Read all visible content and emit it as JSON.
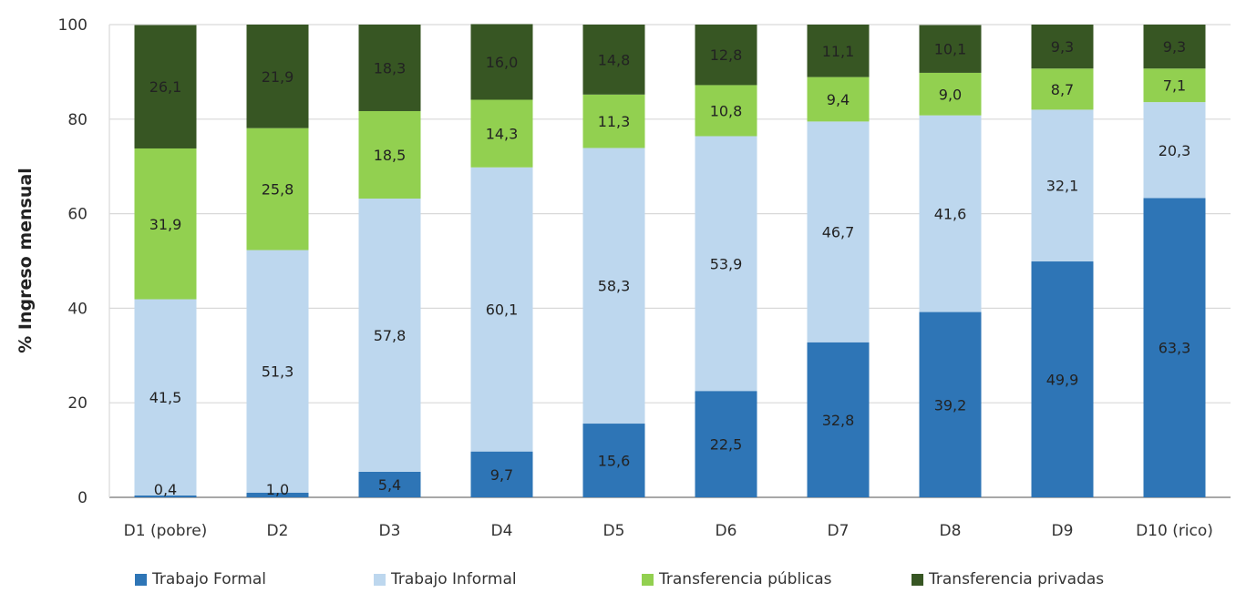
{
  "chart_data": {
    "type": "bar",
    "stacked": true,
    "title": "",
    "xlabel": "",
    "ylabel": "% Ingreso mensual",
    "ylim": [
      0,
      100
    ],
    "yticks": [
      0,
      20,
      40,
      60,
      80,
      100
    ],
    "grid": true,
    "legend_position": "bottom",
    "categories": [
      "D1 (pobre)",
      "D2",
      "D3",
      "D4",
      "D5",
      "D6",
      "D7",
      "D8",
      "D9",
      "D10 (rico)"
    ],
    "series": [
      {
        "name": "Trabajo Formal",
        "color": "#2e75b6",
        "label_color": "#1f3b5c",
        "values": [
          0.4,
          1.0,
          5.4,
          9.7,
          15.6,
          22.5,
          32.8,
          39.2,
          49.9,
          63.3
        ],
        "labels": [
          "0,4",
          "1,0",
          "5,4",
          "9,7",
          "15,6",
          "22,5",
          "32,8",
          "39,2",
          "49,9",
          "63,3"
        ]
      },
      {
        "name": "Trabajo Informal",
        "color": "#bdd7ee",
        "label_color": "#2b3440",
        "values": [
          41.5,
          51.3,
          57.8,
          60.1,
          58.3,
          53.9,
          46.7,
          41.6,
          32.1,
          20.3
        ],
        "labels": [
          "41,5",
          "51,3",
          "57,8",
          "60,1",
          "58,3",
          "53,9",
          "46,7",
          "41,6",
          "32,1",
          "20,3"
        ]
      },
      {
        "name": "Transferencia públicas",
        "color": "#92d050",
        "label_color": "#2b3a1a",
        "values": [
          31.9,
          25.8,
          18.5,
          14.3,
          11.3,
          10.8,
          9.4,
          9.0,
          8.7,
          7.1
        ],
        "labels": [
          "31,9",
          "25,8",
          "18,5",
          "14,3",
          "11,3",
          "10,8",
          "9,4",
          "9,0",
          "8,7",
          "7,1"
        ]
      },
      {
        "name": "Transferencia privadas",
        "color": "#375623",
        "label_color": "#ffffff",
        "values": [
          26.1,
          21.9,
          18.3,
          16.0,
          14.8,
          12.8,
          11.1,
          10.1,
          9.3,
          9.3
        ],
        "labels": [
          "26,1",
          "21,9",
          "18,3",
          "16,0",
          "14,8",
          "12,8",
          "11,1",
          "10,1",
          "9,3",
          "9,3"
        ]
      }
    ]
  }
}
